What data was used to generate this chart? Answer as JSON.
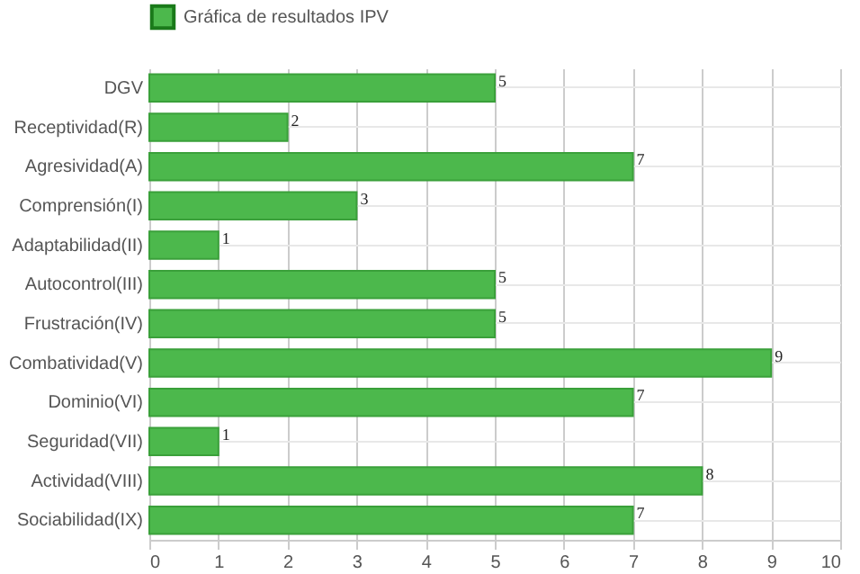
{
  "chart_data": {
    "type": "bar",
    "orientation": "horizontal",
    "categories": [
      "DGV",
      "Receptividad(R)",
      "Agresividad(A)",
      "Comprensión(I)",
      "Adaptabilidad(II)",
      "Autocontrol(III)",
      "Frustración(IV)",
      "Combatividad(V)",
      "Dominio(VI)",
      "Seguridad(VII)",
      "Actividad(VIII)",
      "Sociabilidad(IX)"
    ],
    "series": [
      {
        "name": "Gráfica de resultados IPV",
        "color": "#4cb84c",
        "values": [
          5,
          2,
          7,
          3,
          1,
          5,
          5,
          9,
          7,
          1,
          8,
          7
        ]
      }
    ],
    "xlim": [
      0,
      10
    ],
    "xticks": [
      0,
      1,
      2,
      3,
      4,
      5,
      6,
      7,
      8,
      9,
      10
    ],
    "grid": true,
    "legend": "top",
    "data_labels": true
  }
}
